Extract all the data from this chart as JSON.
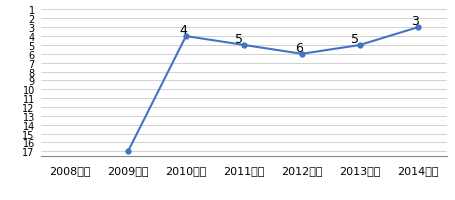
{
  "years": [
    "2008年度",
    "2009年度",
    "2010年度",
    "2011年度",
    "2012年度",
    "2013年度",
    "2014年度"
  ],
  "x_positions": [
    0,
    1,
    2,
    3,
    4,
    5,
    6
  ],
  "data_x": [
    1,
    2,
    3,
    4,
    5,
    6
  ],
  "data_y": [
    17,
    4,
    5,
    6,
    5,
    3
  ],
  "label_show": [
    false,
    true,
    true,
    true,
    true,
    true
  ],
  "line_color": "#4472C4",
  "marker_color": "#4472C4",
  "background_color": "#FFFFFF",
  "grid_color": "#BFBFBF",
  "ylim_min": 1,
  "ylim_max": 17,
  "yticks": [
    1,
    2,
    3,
    4,
    5,
    6,
    7,
    8,
    9,
    10,
    11,
    12,
    13,
    14,
    15,
    16,
    17
  ],
  "font_size_yticks": 7,
  "font_size_xticks": 8,
  "font_size_labels": 9
}
